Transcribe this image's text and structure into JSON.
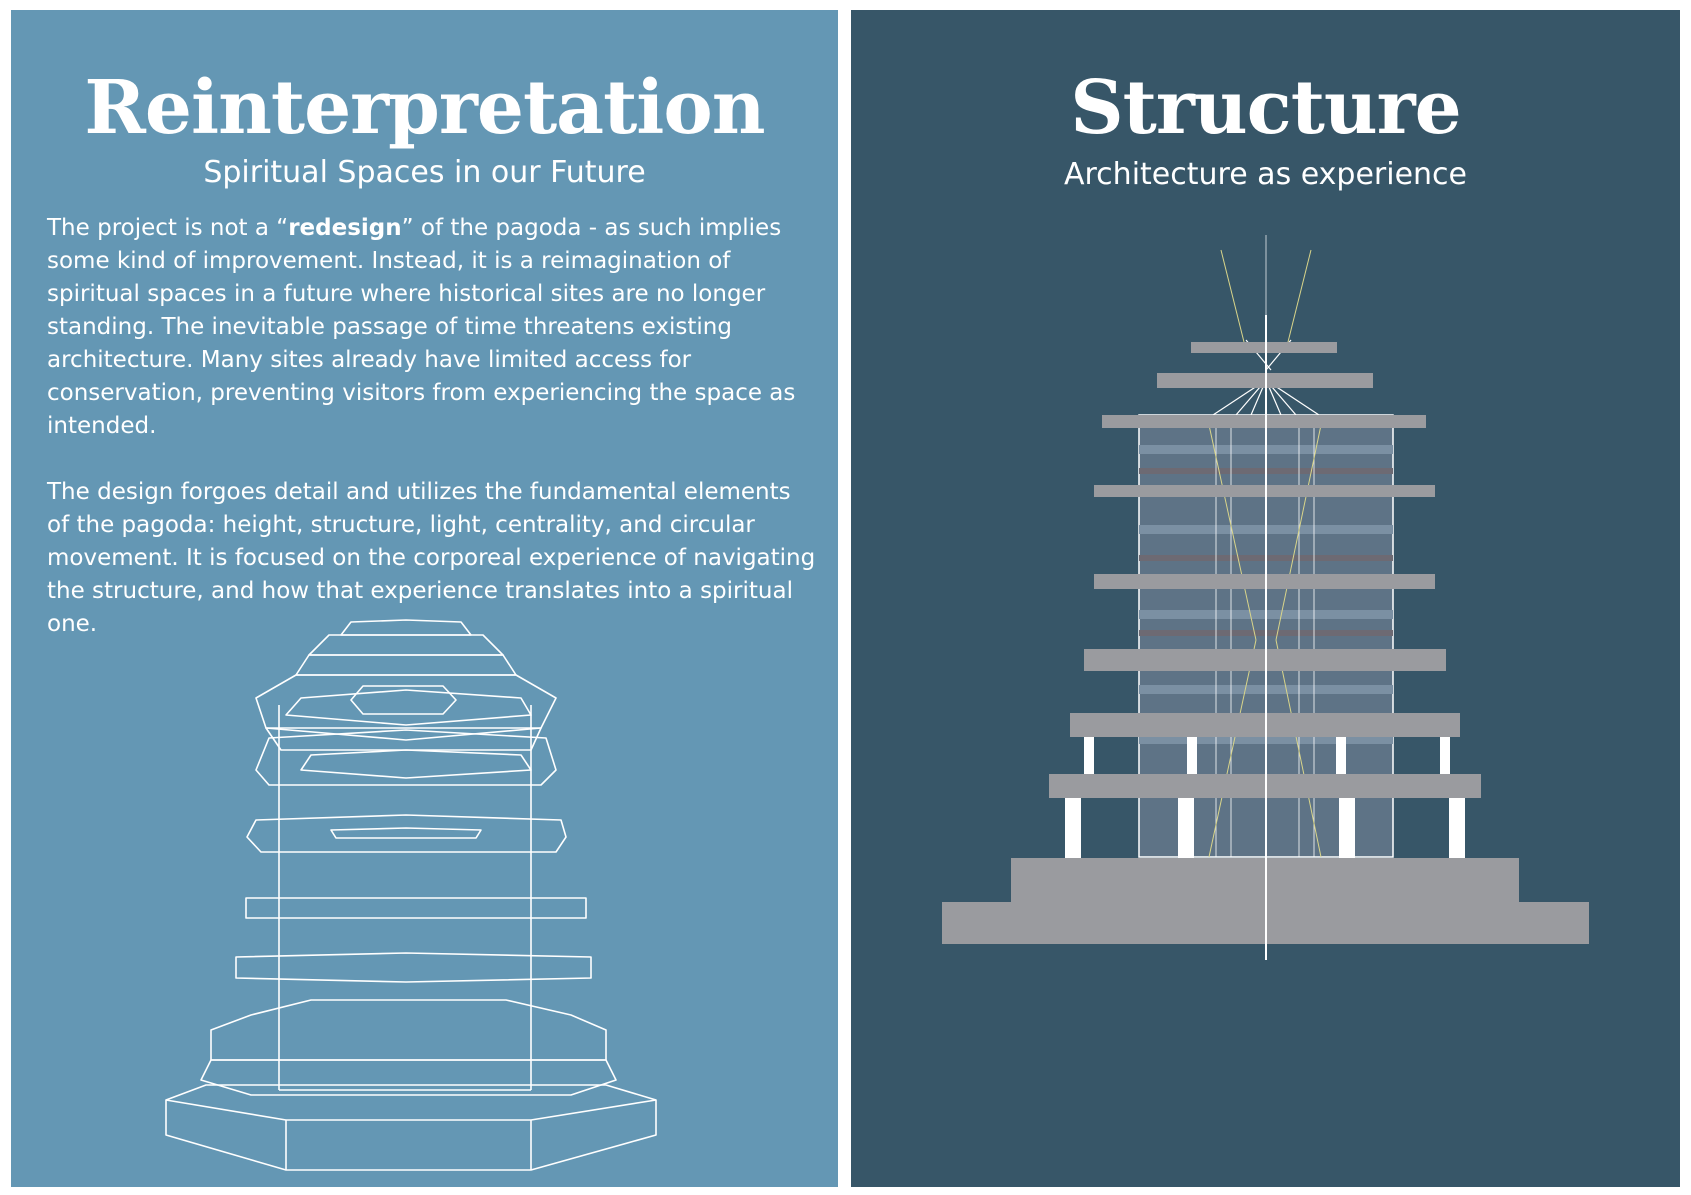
{
  "left_panel": {
    "title": "Reinterpretation",
    "subtitle": "Spiritual Spaces in our Future",
    "paragraph_1_before": "The project is not a “",
    "paragraph_1_emphasis": "redesign",
    "paragraph_1_after": "” of the pagoda - as such implies some kind of improvement. Instead, it is a reimagination of spiritual spaces in a future where historical sites are no longer standing. The inevitable passage of time threatens existing architecture. Many sites already have limited access for conservation, preventing visitors from experiencing the space as intended.",
    "paragraph_2": "The design forgoes detail and utilizes the fundamental elements of the pagoda: height, structure, light, centrality, and circular movement. It is focused on the corporeal experience of navigating the structure, and how that experience translates into a spiritual one."
  },
  "right_panel": {
    "title": "Structure",
    "subtitle": "Architecture as experience"
  },
  "colors": {
    "left_background": "#6497b4",
    "right_background": "#375668",
    "slab_gray": "#9a9b9f",
    "line_white": "#ffffff",
    "accent_yellow": "#d9d58a"
  }
}
